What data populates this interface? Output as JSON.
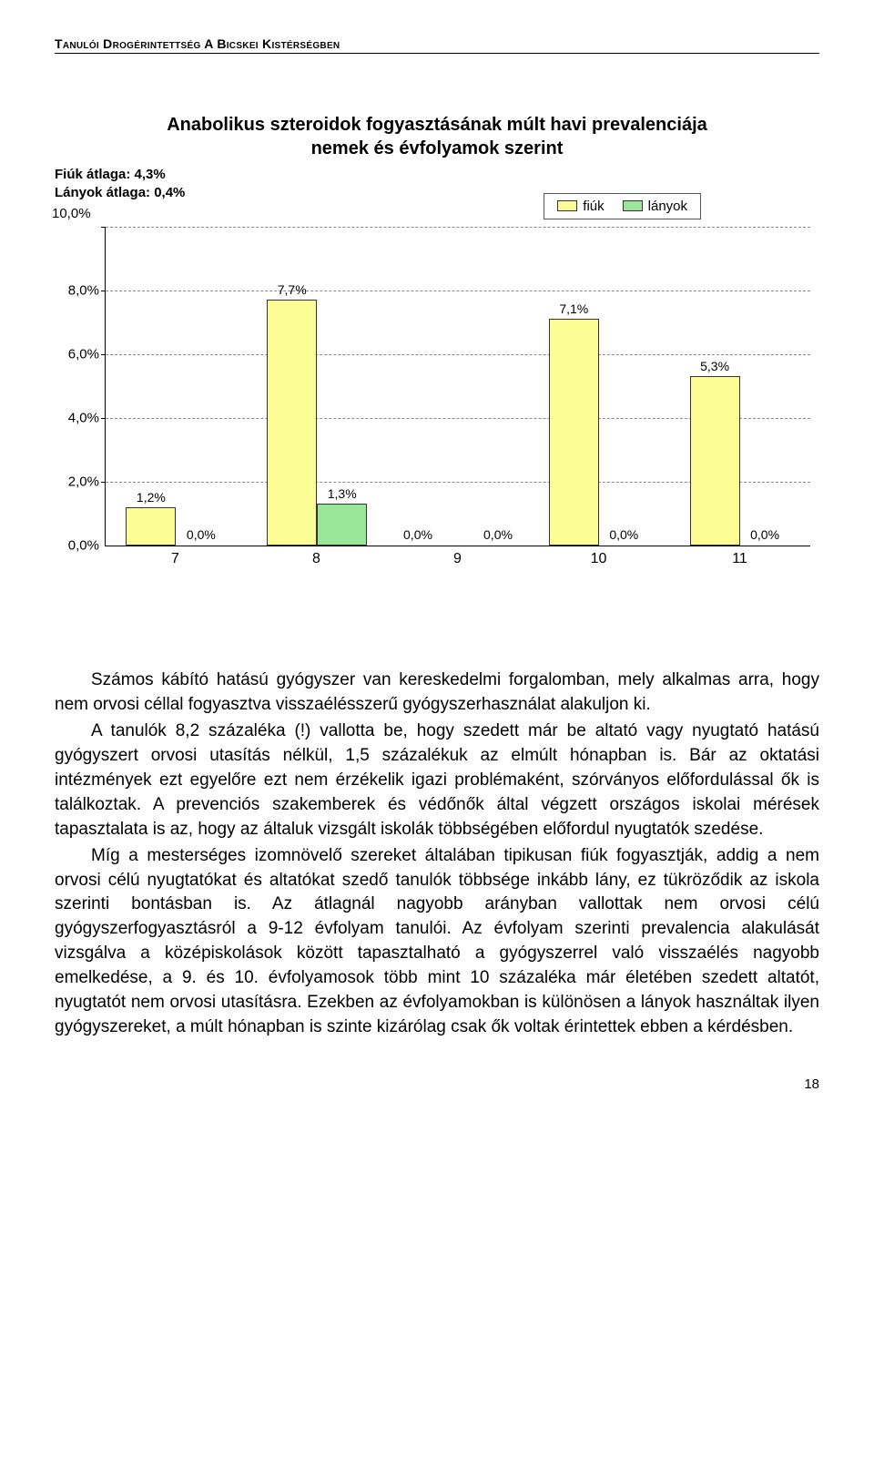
{
  "header": "Tanulói Drogérintettség A Bicskei Kistérségben",
  "chart": {
    "title_line1": "Anabolikus szteroidok fogyasztásának múlt havi prevalenciája",
    "title_line2": "nemek és évfolyamok szerint",
    "avg_boys": "Fiúk átlaga: 4,3%",
    "avg_girls": "Lányok átlaga: 0,4%",
    "legend": {
      "fiuk": "fiúk",
      "lanyok": "lányok"
    },
    "colors": {
      "fiuk": "#fdfd96",
      "lanyok": "#99e699",
      "fiuk_border": "#333333",
      "lanyok_border": "#333333",
      "grid": "#888888",
      "bg": "#ffffff"
    },
    "y": {
      "max": 10,
      "step": 2,
      "ticks": [
        "0,0%",
        "2,0%",
        "4,0%",
        "6,0%",
        "8,0%",
        "10,0%"
      ]
    },
    "categories": [
      "7",
      "8",
      "9",
      "10",
      "11"
    ],
    "series": {
      "fiuk": [
        1.2,
        7.7,
        0.0,
        7.1,
        5.3
      ],
      "lanyok": [
        0.0,
        1.3,
        0.0,
        0.0,
        0.0
      ]
    },
    "labels": {
      "fiuk": [
        "1,2%",
        "7,7%",
        "0,0%",
        "7,1%",
        "5,3%"
      ],
      "lanyok": [
        "0,0%",
        "1,3%",
        "0,0%",
        "0,0%",
        "0,0%"
      ]
    }
  },
  "paragraphs": {
    "p1": "Számos kábító hatású gyógyszer van kereskedelmi forgalomban, mely alkalmas arra, hogy nem orvosi céllal fogyasztva visszaélésszerű gyógyszerhasználat alakuljon ki.",
    "p2": "A tanulók 8,2 százaléka (!) vallotta be, hogy szedett már be altató vagy nyugtató hatású gyógyszert orvosi utasítás nélkül, 1,5 százalékuk az elmúlt hónapban is. Bár az oktatási intézmények ezt egyelőre ezt nem érzékelik igazi problémaként, szórványos előfordulással ők is találkoztak. A prevenciós szakemberek és védőnők által végzett országos iskolai mérések tapasztalata is az, hogy az általuk vizsgált iskolák többségében előfordul nyugtatók szedése.",
    "p3": "Míg a mesterséges izomnövelő szereket általában tipikusan fiúk fogyasztják, addig a nem orvosi célú nyugtatókat és altatókat szedő tanulók többsége inkább lány, ez tükröződik az iskola szerinti bontásban is. Az átlagnál nagyobb arányban vallottak nem orvosi célú gyógyszerfogyasztásról a 9-12 évfolyam tanulói. Az évfolyam szerinti prevalencia alakulását vizsgálva a középiskolások között tapasztalható a gyógyszerrel való visszaélés nagyobb emelkedése, a 9. és 10. évfolyamosok több mint 10 százaléka már életében szedett altatót, nyugtatót nem orvosi utasításra. Ezekben az évfolyamokban is különösen a lányok használtak ilyen gyógyszereket, a múlt hónapban is szinte kizárólag csak ők voltak érintettek ebben a kérdésben."
  },
  "page_number": "18"
}
